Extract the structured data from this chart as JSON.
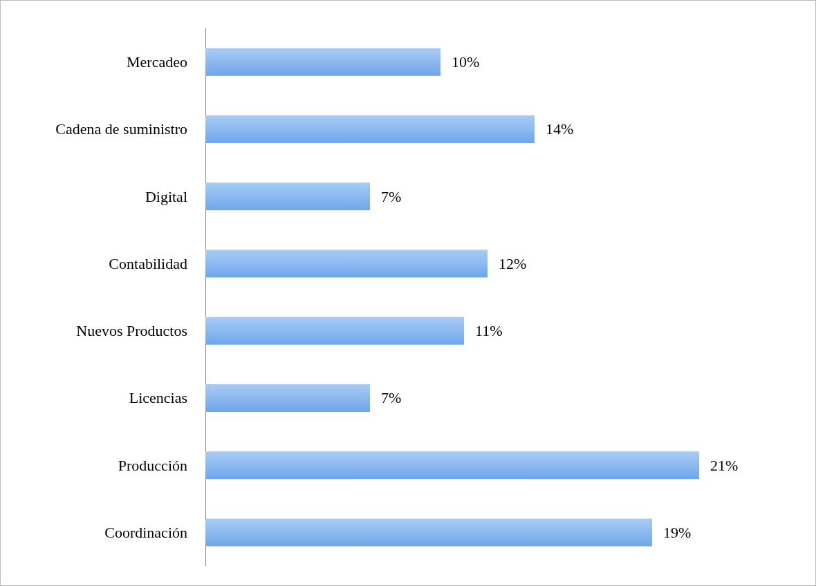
{
  "chart_data": {
    "type": "bar",
    "orientation": "horizontal",
    "categories": [
      "Mercadeo",
      "Cadena de suministro",
      "Digital",
      "Contabilidad",
      "Nuevos Productos",
      "Licencias",
      "Producción",
      "Coordinación"
    ],
    "values": [
      10,
      14,
      7,
      12,
      11,
      7,
      21,
      19
    ],
    "value_labels": [
      "10%",
      "14%",
      "7%",
      "12%",
      "11%",
      "7%",
      "21%",
      "19%"
    ],
    "color": "#6fa6ea"
  }
}
